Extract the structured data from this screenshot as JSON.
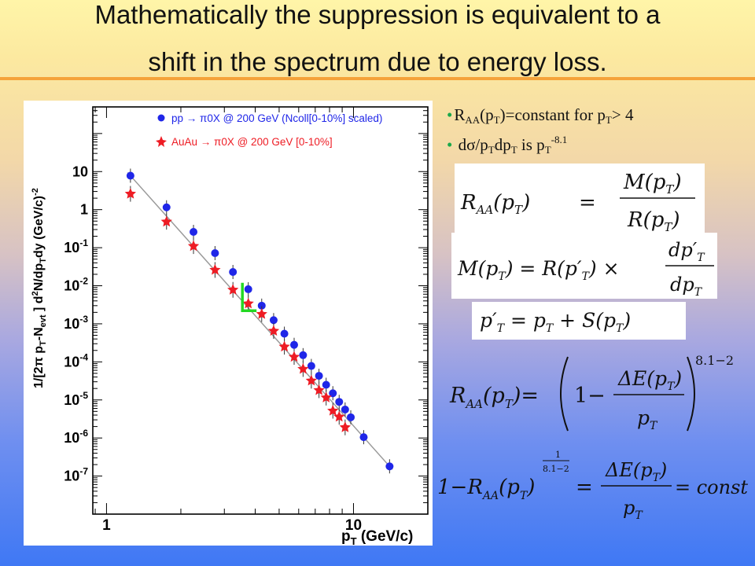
{
  "title": {
    "line1": "Mathematically the suppression is equivalent to a",
    "line2": "shift in the spectrum due to energy loss."
  },
  "colors": {
    "pp": "#1f26e8",
    "auau": "#ee1c24",
    "band": "#f4ef52",
    "shift": "#23d823"
  },
  "chart_data": {
    "type": "scatter",
    "x_scale": "log",
    "y_scale": "log",
    "xlim": [
      0.88,
      20
    ],
    "ylim": [
      1e-08,
      500
    ],
    "xlabel_main": "p",
    "xlabel_sub": "T",
    "xlabel_unit": " (GeV/c)",
    "x_tick_labels": [
      "1",
      "10"
    ],
    "y_tick_labels": [
      "10",
      "1",
      "10-1",
      "10-2",
      "10-3",
      "10-4",
      "10-5",
      "10-6",
      "10-7"
    ],
    "ylabel": "1/[2π p_T N_evt ] d²N/dp_T dy (GeV/c)^-2",
    "legend_position": "top-right",
    "series": [
      {
        "name": "pp → π0X @ 200 GeV (Ncoll[0-10%] scaled)",
        "marker": "circle",
        "x": [
          1.25,
          1.75,
          2.25,
          2.75,
          3.25,
          3.75,
          4.25,
          4.75,
          5.25,
          5.75,
          6.25,
          6.75,
          7.25,
          7.75,
          8.25,
          8.75,
          9.25,
          9.75,
          11.0,
          14.0
        ],
        "y": [
          7.8,
          1.15,
          0.26,
          0.072,
          0.023,
          0.0081,
          0.003,
          0.00125,
          0.00055,
          0.00028,
          0.00015,
          7.8e-05,
          4.3e-05,
          2.5e-05,
          1.5e-05,
          8.9e-06,
          5.6e-06,
          3.5e-06,
          1.05e-06,
          1.8e-07
        ]
      },
      {
        "name": "AuAu → π0X @ 200 GeV [0-10%]",
        "marker": "star",
        "x": [
          1.25,
          1.75,
          2.25,
          2.75,
          3.25,
          3.75,
          4.25,
          4.75,
          5.25,
          5.75,
          6.25,
          6.75,
          7.25,
          7.75,
          8.25,
          8.75,
          9.25
        ],
        "y": [
          2.6,
          0.48,
          0.11,
          0.026,
          0.0078,
          0.0034,
          0.0018,
          0.00065,
          0.00025,
          0.000135,
          6.5e-05,
          3.2e-05,
          1.8e-05,
          1.15e-05,
          5.2e-06,
          3.6e-06,
          1.9e-06
        ]
      }
    ],
    "band": {
      "x": [
        1.25,
        14.0
      ],
      "y": [
        7.8,
        1.8e-07
      ]
    },
    "shift_arrow": {
      "x": [
        3.55,
        3.55,
        4.05
      ],
      "y": [
        0.012,
        0.0022,
        0.0022
      ]
    }
  },
  "notes": {
    "bullet": "•",
    "n1_a": "R",
    "n1_sub1": "AA",
    "n1_b": "(p",
    "n1_sub2": "T",
    "n1_c": ")=constant  for p",
    "n1_sub3": "T",
    "n1_d": "> 4",
    "n2_a": " dσ/p",
    "n2_sub1": "T",
    "n2_b": "dp",
    "n2_sub2": "T",
    "n2_c": "  is p",
    "n2_sub3": "T",
    "n2_sup": "-8.1"
  },
  "equations": {
    "eq1_lhs": "R",
    "eq1_lhs_sub": "AA",
    "eq1_lhs_arg": "(p",
    "eq1_lhs_arg_sub": "T",
    "eq1_lhs_close": ")",
    "eq1_eq": "=",
    "eq1_num": "M(p",
    "eq1_num_sub": "T",
    "eq1_num_close": ")",
    "eq1_den": "R(p",
    "eq1_den_sub": "T",
    "eq1_den_close": ")",
    "eq2_lhs": "M(p",
    "eq2_lhs_sub": "T",
    "eq2_lhs_close": ") = R(p′",
    "eq2_mid_sub": "T",
    "eq2_mid_close": ") ×",
    "eq2_num": "dp′",
    "eq2_num_sub": "T",
    "eq2_den": "dp",
    "eq2_den_sub": "T",
    "eq3_a": "p′",
    "eq3_a_sub": "T",
    "eq3_b": " = p",
    "eq3_b_sub": "T",
    "eq3_c": " + S(p",
    "eq3_c_sub": "T",
    "eq3_d": ")",
    "eq4_lhs": "R",
    "eq4_lhs_sub": "AA",
    "eq4_lhs_arg": "(p",
    "eq4_lhs_arg_sub": "T",
    "eq4_lhs_close": ")=",
    "eq4_one": "1−",
    "eq4_num": "ΔE(p",
    "eq4_num_sub": "T",
    "eq4_num_close": ")",
    "eq4_den": "p",
    "eq4_den_sub": "T",
    "eq4_exp": "8.1−2",
    "eq5_lhs": "1−R",
    "eq5_lhs_sub": "AA",
    "eq5_lhs_arg": "(p",
    "eq5_lhs_arg_sub": "T",
    "eq5_lhs_close": ")",
    "eq5_exp_num": "1",
    "eq5_exp_den": "8.1−2",
    "eq5_eq": "=",
    "eq5_num": "ΔE(p",
    "eq5_num_sub": "T",
    "eq5_num_close": ")",
    "eq5_den": "p",
    "eq5_den_sub": "T",
    "eq5_rhs": "= const"
  }
}
